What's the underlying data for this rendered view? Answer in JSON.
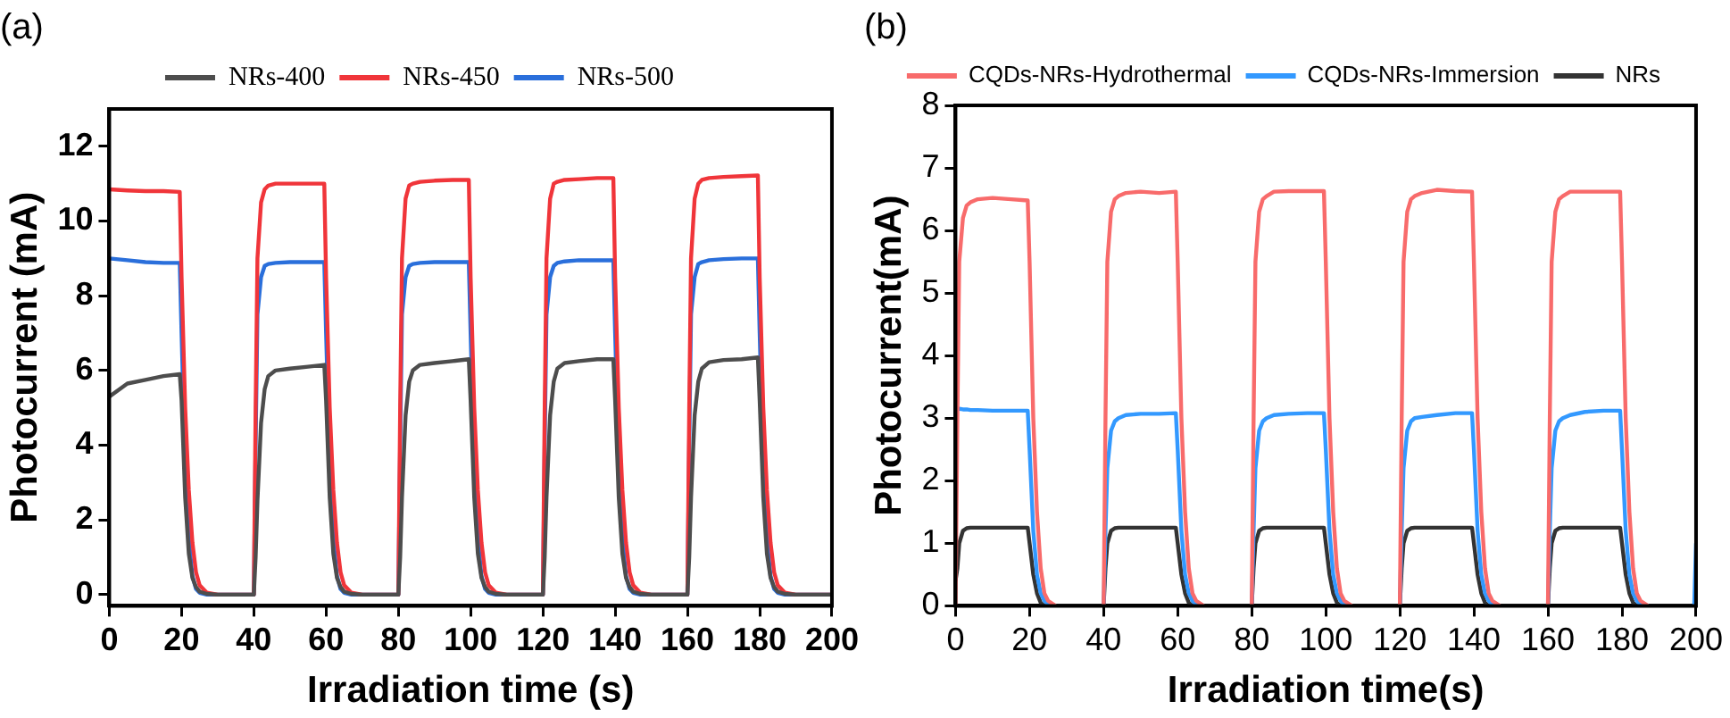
{
  "chart_data": [
    {
      "type": "line",
      "title": "(a)",
      "xlabel": "Irradiation time (s)",
      "ylabel": "Photocurrent (mA)",
      "xlim": [
        0,
        200
      ],
      "xticks": [
        0,
        20,
        40,
        60,
        80,
        100,
        120,
        140,
        160,
        180,
        200
      ],
      "ylim": [
        -0.3,
        13
      ],
      "yticks": [
        0,
        2,
        4,
        6,
        8,
        10,
        12
      ],
      "grid": false,
      "legend": "top",
      "marker": "none",
      "line_style": "solid",
      "x": [
        0,
        5,
        10,
        15,
        19.5,
        20,
        21,
        22,
        23,
        24,
        25,
        27,
        30,
        40,
        40.5,
        41,
        42,
        43,
        44,
        46,
        50,
        55,
        59.5,
        60,
        61,
        62,
        63,
        64,
        65,
        67,
        70,
        80,
        80.5,
        81,
        82,
        83,
        84,
        86,
        90,
        95,
        99.5,
        100,
        101,
        102,
        103,
        104,
        105,
        107,
        110,
        120,
        120.5,
        121,
        122,
        123,
        124,
        126,
        130,
        135,
        139.5,
        140,
        141,
        142,
        143,
        144,
        145,
        147,
        150,
        160,
        160.5,
        161,
        162,
        163,
        164,
        166,
        170,
        175,
        179.5,
        180,
        181,
        182,
        183,
        184,
        185,
        187,
        190,
        200
      ],
      "series": [
        {
          "name": "NRs-400",
          "color": "#4d4d4d",
          "values": [
            5.3,
            5.65,
            5.75,
            5.85,
            5.9,
            5.2,
            2.6,
            1.1,
            0.45,
            0.2,
            0.08,
            0.02,
            0,
            0,
            1,
            2.5,
            4.6,
            5.5,
            5.85,
            6.0,
            6.05,
            6.1,
            6.15,
            5.2,
            2.6,
            1.1,
            0.45,
            0.2,
            0.08,
            0.02,
            0,
            0,
            1,
            2.6,
            4.8,
            5.7,
            6.0,
            6.15,
            6.2,
            6.25,
            6.3,
            5.2,
            2.6,
            1.1,
            0.45,
            0.2,
            0.08,
            0.02,
            0,
            0,
            1,
            2.6,
            4.8,
            5.7,
            6.05,
            6.2,
            6.25,
            6.3,
            6.3,
            5.2,
            2.6,
            1.1,
            0.45,
            0.2,
            0.08,
            0.02,
            0,
            0,
            1,
            2.6,
            4.8,
            5.7,
            6.05,
            6.22,
            6.28,
            6.3,
            6.35,
            5.2,
            2.6,
            1.1,
            0.45,
            0.2,
            0.08,
            0.02,
            0,
            0
          ]
        },
        {
          "name": "NRs-450",
          "color": "#f0353a",
          "values": [
            10.85,
            10.82,
            10.8,
            10.8,
            10.78,
            8.5,
            5,
            2.8,
            1.4,
            0.6,
            0.25,
            0.05,
            0,
            0,
            5,
            9,
            10.5,
            10.85,
            10.95,
            11.0,
            11.0,
            11.0,
            11.0,
            8.5,
            5,
            2.8,
            1.4,
            0.6,
            0.25,
            0.05,
            0,
            0,
            5,
            9,
            10.6,
            10.95,
            11.0,
            11.05,
            11.08,
            11.1,
            11.1,
            8.5,
            5,
            2.8,
            1.4,
            0.6,
            0.25,
            0.05,
            0,
            0,
            5,
            9,
            10.6,
            11.0,
            11.05,
            11.1,
            11.12,
            11.15,
            11.15,
            8.5,
            5,
            2.8,
            1.4,
            0.6,
            0.25,
            0.05,
            0,
            0,
            5,
            9,
            10.6,
            11.0,
            11.1,
            11.15,
            11.18,
            11.2,
            11.22,
            8.5,
            5,
            2.8,
            1.4,
            0.6,
            0.25,
            0.05,
            0,
            0
          ]
        },
        {
          "name": "NRs-500",
          "color": "#2a6fdb",
          "values": [
            9.0,
            8.95,
            8.9,
            8.88,
            8.88,
            7,
            3.5,
            1.5,
            0.5,
            0.15,
            0.05,
            0,
            0,
            0,
            4,
            7.5,
            8.5,
            8.8,
            8.85,
            8.88,
            8.9,
            8.9,
            8.9,
            7,
            3.5,
            1.5,
            0.5,
            0.15,
            0.05,
            0,
            0,
            0,
            4,
            7.5,
            8.5,
            8.8,
            8.85,
            8.88,
            8.9,
            8.9,
            8.9,
            7,
            3.5,
            1.5,
            0.5,
            0.15,
            0.05,
            0,
            0,
            0,
            4,
            7.5,
            8.5,
            8.8,
            8.88,
            8.92,
            8.95,
            8.95,
            8.95,
            7,
            3.5,
            1.5,
            0.5,
            0.15,
            0.05,
            0,
            0,
            0,
            4,
            7.5,
            8.5,
            8.85,
            8.9,
            8.95,
            8.98,
            9.0,
            9.0,
            7,
            3.5,
            1.5,
            0.5,
            0.15,
            0.05,
            0,
            0,
            0
          ]
        }
      ]
    },
    {
      "type": "line",
      "title": "(b)",
      "xlabel": "Irradiation time(s)",
      "ylabel": "Photocurrent(mA)",
      "xlim": [
        0,
        200
      ],
      "xticks": [
        0,
        20,
        40,
        60,
        80,
        100,
        120,
        140,
        160,
        180,
        200
      ],
      "ylim": [
        0,
        8
      ],
      "yticks": [
        0,
        1,
        2,
        3,
        4,
        5,
        6,
        7,
        8
      ],
      "grid": false,
      "legend": "top",
      "marker": "none",
      "line_style": "solid",
      "x": [
        0,
        0.5,
        1,
        2,
        3,
        4,
        6,
        10,
        15,
        19.5,
        20,
        21,
        22,
        23,
        24,
        25,
        27,
        30,
        40,
        40.5,
        41,
        42,
        43,
        44,
        46,
        50,
        55,
        59.5,
        60,
        61,
        62,
        63,
        64,
        65,
        67,
        70,
        80,
        80.5,
        81,
        82,
        83,
        84,
        86,
        90,
        95,
        99.5,
        100,
        101,
        102,
        103,
        104,
        105,
        107,
        110,
        120,
        120.5,
        121,
        122,
        123,
        124,
        126,
        130,
        135,
        139.5,
        140,
        141,
        142,
        143,
        144,
        145,
        147,
        150,
        160,
        160.5,
        161,
        162,
        163,
        164,
        166,
        170,
        175,
        179.5,
        180,
        181,
        182,
        183,
        184,
        185,
        187,
        190,
        199.5,
        200
      ],
      "series": [
        {
          "name": "CQDs-NRs-Hydrothermal",
          "color": "#f86b6b",
          "values": [
            0,
            3,
            5.5,
            6.2,
            6.4,
            6.45,
            6.5,
            6.52,
            6.5,
            6.48,
            5.5,
            3,
            1.5,
            0.6,
            0.2,
            0.08,
            0,
            null,
            0,
            3,
            5.5,
            6.3,
            6.5,
            6.55,
            6.6,
            6.62,
            6.6,
            6.62,
            5.5,
            3,
            1.5,
            0.6,
            0.2,
            0.08,
            0,
            null,
            0,
            3,
            5.5,
            6.3,
            6.5,
            6.55,
            6.62,
            6.63,
            6.63,
            6.63,
            5.5,
            3,
            1.5,
            0.6,
            0.2,
            0.08,
            0,
            null,
            0,
            3,
            5.5,
            6.3,
            6.5,
            6.55,
            6.6,
            6.65,
            6.63,
            6.62,
            5.5,
            3,
            1.5,
            0.6,
            0.2,
            0.08,
            0,
            null,
            0,
            3,
            5.5,
            6.3,
            6.5,
            6.55,
            6.62,
            6.62,
            6.62,
            6.62,
            5.5,
            3,
            1.5,
            0.6,
            0.2,
            0.08,
            0,
            null,
            null,
            null
          ]
        },
        {
          "name": "CQDs-NRs-Immersion",
          "color": "#3399ff",
          "values": [
            3.15,
            3.15,
            3.15,
            3.14,
            3.14,
            3.13,
            3.13,
            3.12,
            3.12,
            3.12,
            2.5,
            1.2,
            0.5,
            0.2,
            0.08,
            0.02,
            0,
            null,
            0,
            1.2,
            2.2,
            2.8,
            2.95,
            3.0,
            3.05,
            3.07,
            3.07,
            3.08,
            2.5,
            1.2,
            0.5,
            0.2,
            0.08,
            0.02,
            0,
            null,
            0,
            1.2,
            2.2,
            2.8,
            2.95,
            3.0,
            3.05,
            3.07,
            3.08,
            3.08,
            2.5,
            1.2,
            0.5,
            0.2,
            0.08,
            0.02,
            0,
            null,
            0,
            1.2,
            2.2,
            2.8,
            2.95,
            3.0,
            3.02,
            3.05,
            3.08,
            3.08,
            2.5,
            1.2,
            0.5,
            0.2,
            0.08,
            0.02,
            0,
            null,
            0,
            1.2,
            2.2,
            2.8,
            2.95,
            3.0,
            3.05,
            3.1,
            3.12,
            3.12,
            2.5,
            1.2,
            0.5,
            0.2,
            0.08,
            0.02,
            0,
            null,
            0,
            1.0
          ]
        },
        {
          "name": "NRs",
          "color": "#333333",
          "values": [
            0.4,
            0.6,
            1.0,
            1.2,
            1.24,
            1.25,
            1.25,
            1.25,
            1.25,
            1.25,
            1.0,
            0.5,
            0.2,
            0.05,
            0,
            0,
            0,
            0,
            0,
            0.6,
            1.0,
            1.2,
            1.24,
            1.25,
            1.25,
            1.25,
            1.25,
            1.25,
            1.0,
            0.5,
            0.2,
            0.05,
            0,
            0,
            0,
            0,
            0,
            0.6,
            1.0,
            1.2,
            1.24,
            1.25,
            1.25,
            1.25,
            1.25,
            1.25,
            1.0,
            0.5,
            0.2,
            0.05,
            0,
            0,
            0,
            0,
            0,
            0.6,
            1.0,
            1.2,
            1.24,
            1.25,
            1.25,
            1.25,
            1.25,
            1.25,
            1.0,
            0.5,
            0.2,
            0.05,
            0,
            0,
            0,
            0,
            0,
            0.6,
            1.0,
            1.2,
            1.24,
            1.25,
            1.25,
            1.25,
            1.25,
            1.25,
            1.0,
            0.5,
            0.2,
            0.05,
            0,
            0,
            0,
            0,
            0,
            0
          ]
        }
      ]
    }
  ]
}
